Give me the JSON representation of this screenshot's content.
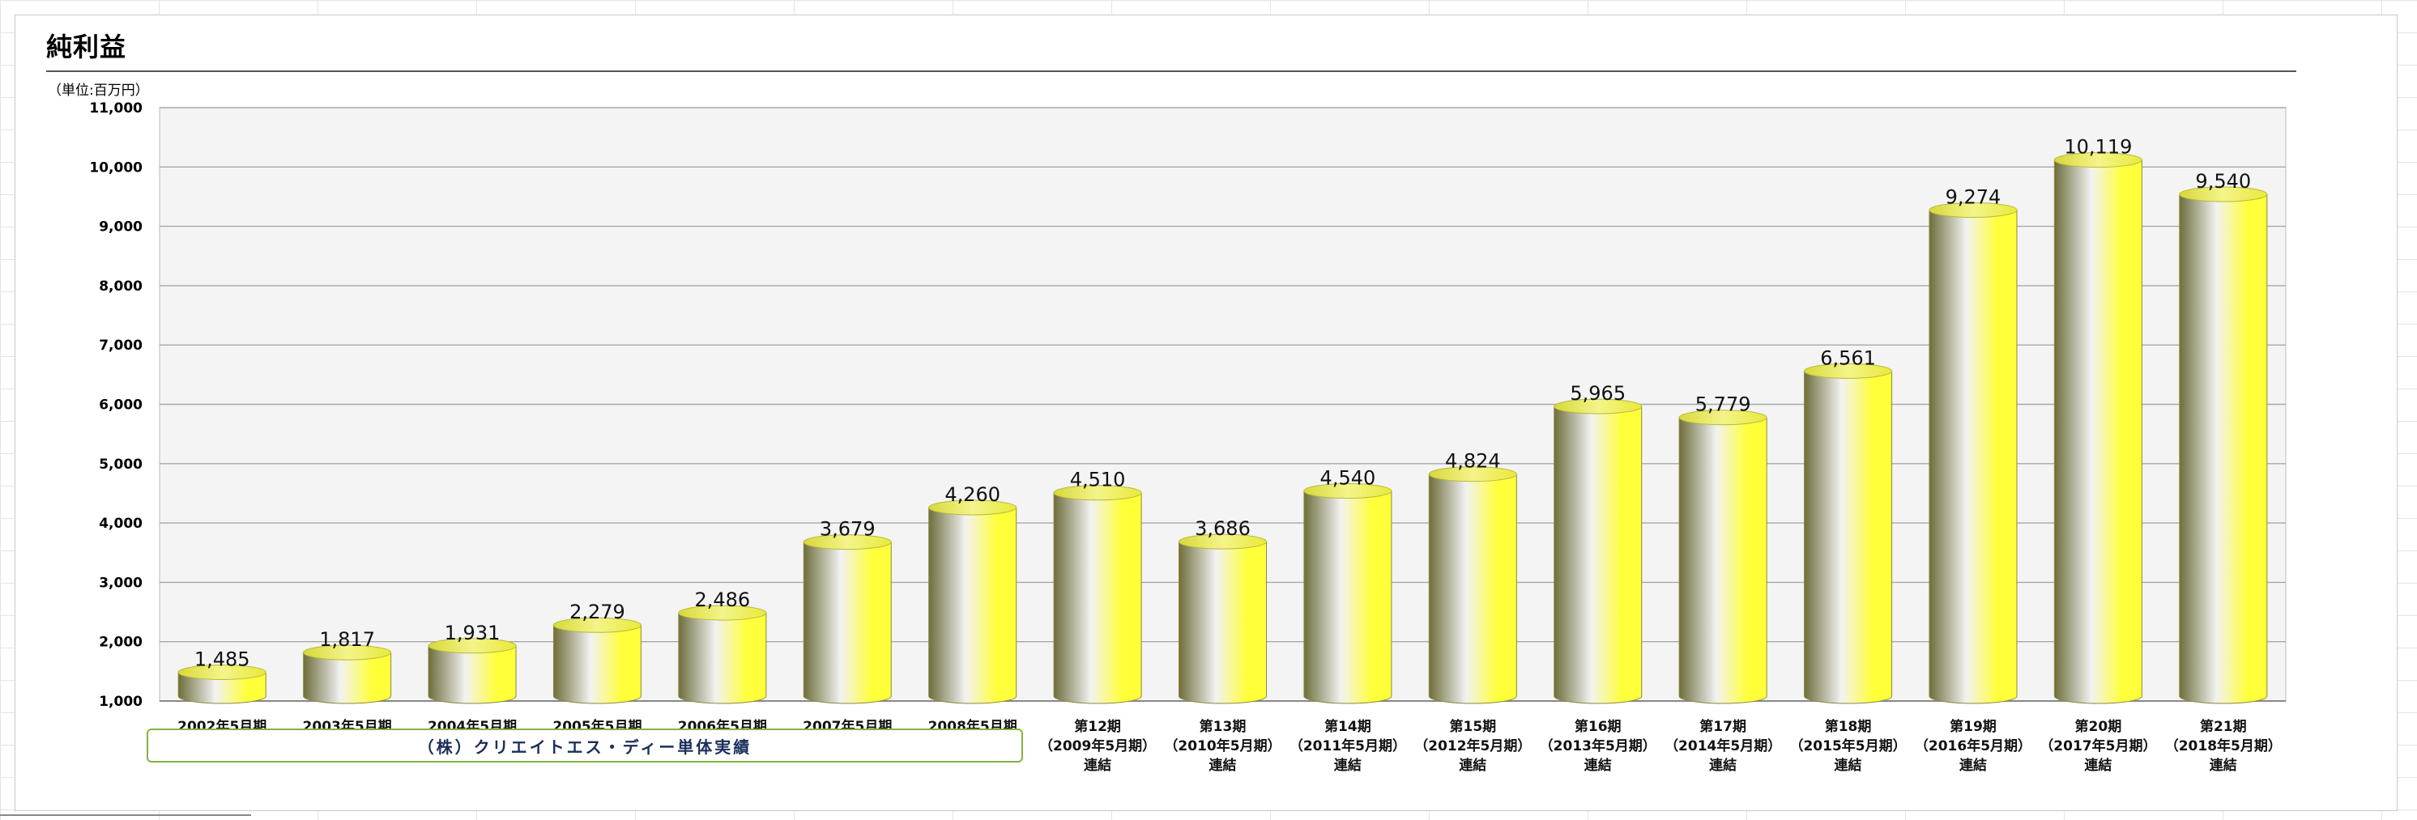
{
  "title": "純利益",
  "unit": "（単位:百万円）",
  "group_label": "（株）クリエイトエス・ディー単体実績",
  "colors": {
    "bar_light": "#ffff3a",
    "bar_dark": "#6e6e3c",
    "bar_mid": "#f2f2f2",
    "plot_bg": "#f4f4f4",
    "gridline": "#a8a8a8",
    "group_border": "#84b33f",
    "group_text": "#1b2f5a"
  },
  "chart_data": {
    "type": "bar",
    "style": "3d-cylinder",
    "title": "純利益",
    "unit": "（単位:百万円）",
    "xlabel": "",
    "ylabel": "",
    "ylim": [
      1000,
      11000
    ],
    "y_ticks": [
      "1,000",
      "2,000",
      "3,000",
      "4,000",
      "5,000",
      "6,000",
      "7,000",
      "8,000",
      "9,000",
      "10,000",
      "11,000"
    ],
    "grid": true,
    "legend": "none",
    "categories": [
      [
        "2002年5月期"
      ],
      [
        "2003年5月期"
      ],
      [
        "2004年5月期"
      ],
      [
        "2005年5月期"
      ],
      [
        "2006年5月期"
      ],
      [
        "2007年5月期"
      ],
      [
        "2008年5月期"
      ],
      [
        "第12期",
        "（2009年5月期）",
        "連結"
      ],
      [
        "第13期",
        "（2010年5月期）",
        "連結"
      ],
      [
        "第14期",
        "（2011年5月期）",
        "連結"
      ],
      [
        "第15期",
        "（2012年5月期）",
        "連結"
      ],
      [
        "第16期",
        "（2013年5月期）",
        "連結"
      ],
      [
        "第17期",
        "（2014年5月期）",
        "連結"
      ],
      [
        "第18期",
        "（2015年5月期）",
        "連結"
      ],
      [
        "第19期",
        "（2016年5月期）",
        "連結"
      ],
      [
        "第20期",
        "（2017年5月期）",
        "連結"
      ],
      [
        "第21期",
        "（2018年5月期）",
        "連結"
      ]
    ],
    "values": [
      1485,
      1817,
      1931,
      2279,
      2486,
      3679,
      4260,
      4510,
      3686,
      4540,
      4824,
      5965,
      5779,
      6561,
      9274,
      10119,
      9540
    ],
    "value_labels": [
      "1,485",
      "1,817",
      "1,931",
      "2,279",
      "2,486",
      "3,679",
      "4,260",
      "4,510",
      "3,686",
      "4,540",
      "4,824",
      "5,965",
      "5,779",
      "6,561",
      "9,274",
      "10,119",
      "9,540"
    ]
  }
}
